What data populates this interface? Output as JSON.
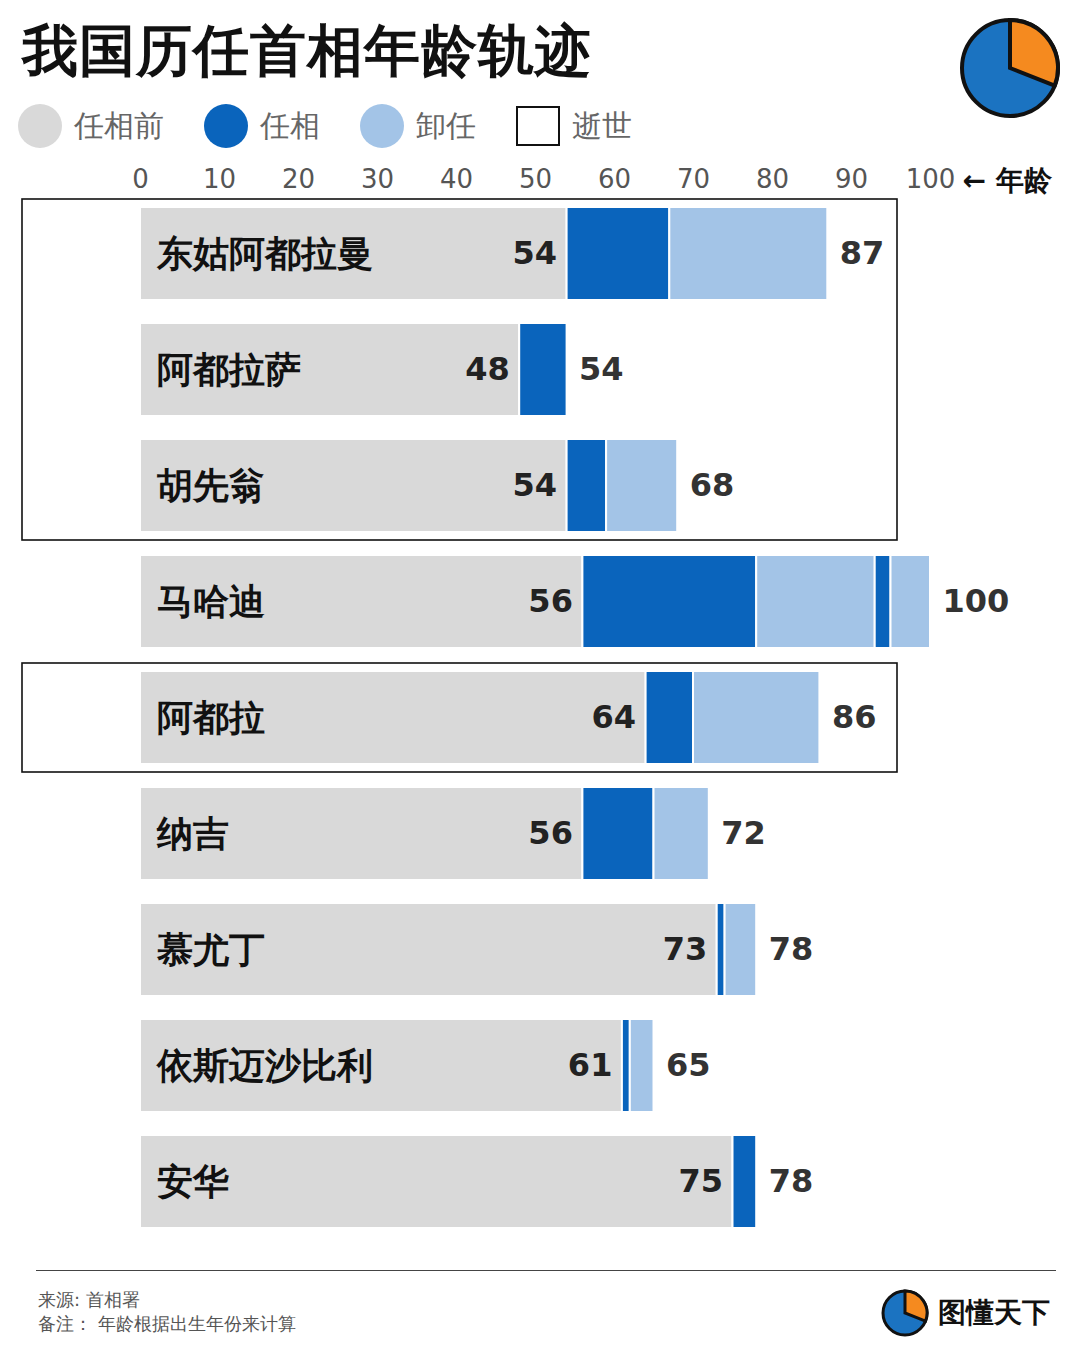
{
  "chart_data": {
    "type": "bar",
    "orientation": "horizontal",
    "stacked": true,
    "title": "我国历任首相年龄轨迹",
    "x_label": "← 年龄",
    "xlim": [
      0,
      100
    ],
    "xticks": [
      0,
      10,
      20,
      30,
      40,
      50,
      60,
      70,
      80,
      90,
      100
    ],
    "tick_labels": "x",
    "grid": false,
    "data_labels": true,
    "legend": "top",
    "categories": [
      "东姑阿都拉曼",
      "阿都拉萨",
      "胡先翁",
      "马哈迪",
      "阿都拉",
      "纳吉",
      "慕尤丁",
      "依斯迈沙比利",
      "安华"
    ],
    "series": [
      {
        "name": "任相前",
        "color": "#d9d9d9"
      },
      {
        "name": "任相",
        "color": "#0a64bc"
      },
      {
        "name": "卸任",
        "color": "#a3c4e7"
      }
    ],
    "segments": [
      [
        [
          "任相前",
          54
        ],
        [
          "任相",
          13
        ],
        [
          "卸任",
          20
        ]
      ],
      [
        [
          "任相前",
          48
        ],
        [
          "任相",
          6
        ]
      ],
      [
        [
          "任相前",
          54
        ],
        [
          "任相",
          5
        ],
        [
          "卸任",
          9
        ]
      ],
      [
        [
          "任相前",
          56
        ],
        [
          "任相",
          22
        ],
        [
          "卸任",
          15
        ],
        [
          "任相",
          2
        ],
        [
          "卸任",
          5
        ]
      ],
      [
        [
          "任相前",
          64
        ],
        [
          "任相",
          6
        ],
        [
          "卸任",
          16
        ]
      ],
      [
        [
          "任相前",
          56
        ],
        [
          "任相",
          9
        ],
        [
          "卸任",
          7
        ]
      ],
      [
        [
          "任相前",
          73
        ],
        [
          "任相",
          1
        ],
        [
          "卸任",
          4
        ]
      ],
      [
        [
          "任相前",
          61
        ],
        [
          "任相",
          1
        ],
        [
          "卸任",
          3
        ]
      ],
      [
        [
          "任相前",
          75
        ],
        [
          "任相",
          3
        ]
      ]
    ],
    "end_values": [
      87,
      54,
      68,
      100,
      86,
      72,
      78,
      65,
      78
    ],
    "deceased": [
      true,
      true,
      true,
      false,
      true,
      false,
      false,
      false,
      false
    ],
    "deceased_label": "逝世",
    "source": "来源: 首相署",
    "note": "备注： 年龄根据出生年份来计算",
    "brand": "图懂天下"
  }
}
